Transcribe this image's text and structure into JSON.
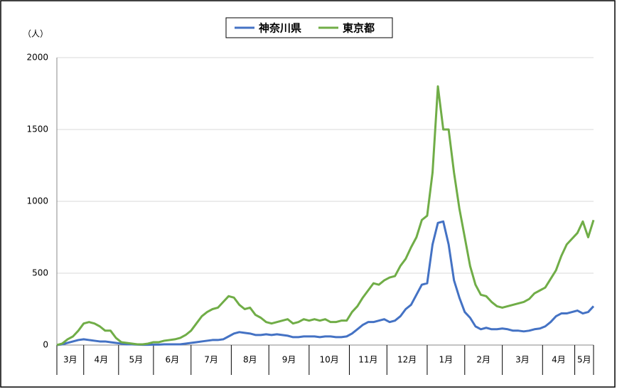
{
  "chart_data": {
    "type": "line",
    "y_label": "（人）",
    "categories": [
      null,
      null,
      "3月",
      null,
      null,
      null,
      null,
      null,
      "4月",
      null,
      null,
      null,
      null,
      null,
      null,
      "5月",
      null,
      null,
      null,
      null,
      null,
      "6月",
      null,
      null,
      null,
      null,
      null,
      null,
      null,
      "7月",
      null,
      null,
      null,
      null,
      null,
      null,
      "8月",
      null,
      null,
      null,
      null,
      null,
      null,
      "9月",
      null,
      null,
      null,
      null,
      null,
      null,
      null,
      "10月",
      null,
      null,
      null,
      null,
      null,
      null,
      "11月",
      null,
      null,
      null,
      null,
      null,
      null,
      "12月",
      null,
      null,
      null,
      null,
      null,
      null,
      null,
      "1月",
      null,
      null,
      null,
      null,
      null,
      "2月",
      null,
      null,
      null,
      null,
      null,
      null,
      null,
      "3月",
      null,
      null,
      null,
      null,
      null,
      null,
      "4月",
      null,
      null,
      null,
      null,
      "5月",
      null
    ],
    "series": [
      {
        "name": "神奈川県",
        "color": "#4472c4",
        "values": [
          0,
          5,
          15,
          25,
          35,
          40,
          35,
          30,
          25,
          25,
          20,
          15,
          10,
          5,
          5,
          3,
          2,
          2,
          3,
          3,
          5,
          5,
          5,
          5,
          10,
          15,
          20,
          25,
          30,
          35,
          35,
          40,
          60,
          80,
          90,
          85,
          80,
          70,
          70,
          75,
          70,
          75,
          70,
          65,
          55,
          55,
          60,
          60,
          60,
          55,
          60,
          60,
          55,
          55,
          60,
          80,
          110,
          140,
          160,
          160,
          170,
          180,
          160,
          170,
          200,
          250,
          280,
          350,
          420,
          430,
          700,
          850,
          860,
          700,
          450,
          330,
          230,
          190,
          130,
          110,
          120,
          110,
          110,
          115,
          110,
          100,
          100,
          95,
          100,
          110,
          115,
          130,
          160,
          200,
          220,
          220,
          230,
          240,
          220,
          230,
          270
        ]
      },
      {
        "name": "東京都",
        "color": "#70ad47",
        "values": [
          0,
          10,
          40,
          60,
          100,
          150,
          160,
          150,
          130,
          100,
          100,
          50,
          20,
          15,
          10,
          5,
          5,
          10,
          20,
          20,
          30,
          35,
          40,
          50,
          70,
          100,
          150,
          200,
          230,
          250,
          260,
          300,
          340,
          330,
          280,
          250,
          260,
          210,
          190,
          160,
          150,
          160,
          170,
          180,
          150,
          160,
          180,
          170,
          180,
          170,
          180,
          160,
          160,
          170,
          170,
          230,
          270,
          330,
          380,
          430,
          420,
          450,
          470,
          480,
          550,
          600,
          680,
          750,
          870,
          900,
          1200,
          1800,
          1500,
          1500,
          1200,
          950,
          750,
          550,
          420,
          350,
          340,
          300,
          270,
          260,
          270,
          280,
          290,
          300,
          320,
          360,
          380,
          400,
          460,
          520,
          620,
          700,
          740,
          780,
          860,
          750,
          870
        ]
      }
    ],
    "ylim": [
      0,
      2000
    ],
    "yticks": [
      0,
      500,
      1000,
      1500,
      2000
    ],
    "grid": true,
    "legend": "top"
  }
}
